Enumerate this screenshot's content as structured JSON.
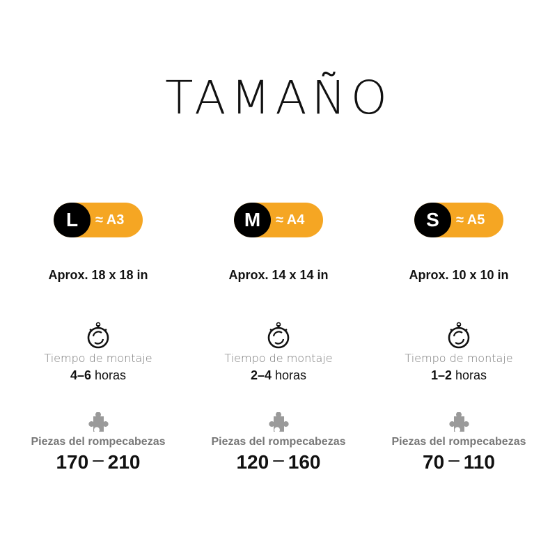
{
  "title": "TAMAÑO",
  "accent": "#f5a623",
  "columns": [
    {
      "size": "L",
      "approx": "≈ A3",
      "dimensions": "Aprox. 18 x 18 in",
      "time_label": "Tiempo de montaje",
      "time_range": "4–6",
      "time_unit": "horas",
      "pieces_label": "Piezas del rompecabezas",
      "pieces_min": "170",
      "pieces_dash": "–",
      "pieces_max": "210"
    },
    {
      "size": "M",
      "approx": "≈ A4",
      "dimensions": "Aprox. 14 x 14 in",
      "time_label": "Tiempo de montaje",
      "time_range": "2–4",
      "time_unit": "horas",
      "pieces_label": "Piezas del rompecabezas",
      "pieces_min": "120",
      "pieces_dash": "–",
      "pieces_max": "160"
    },
    {
      "size": "S",
      "approx": "≈ A5",
      "dimensions": "Aprox. 10 x 10 in",
      "time_label": "Tiempo de montaje",
      "time_range": "1–2",
      "time_unit": "horas",
      "pieces_label": "Piezas del rompecabezas",
      "pieces_min": "70",
      "pieces_dash": "–",
      "pieces_max": "110"
    }
  ],
  "icons": {
    "time": "stopwatch-icon",
    "pieces": "puzzle-piece-icon"
  }
}
